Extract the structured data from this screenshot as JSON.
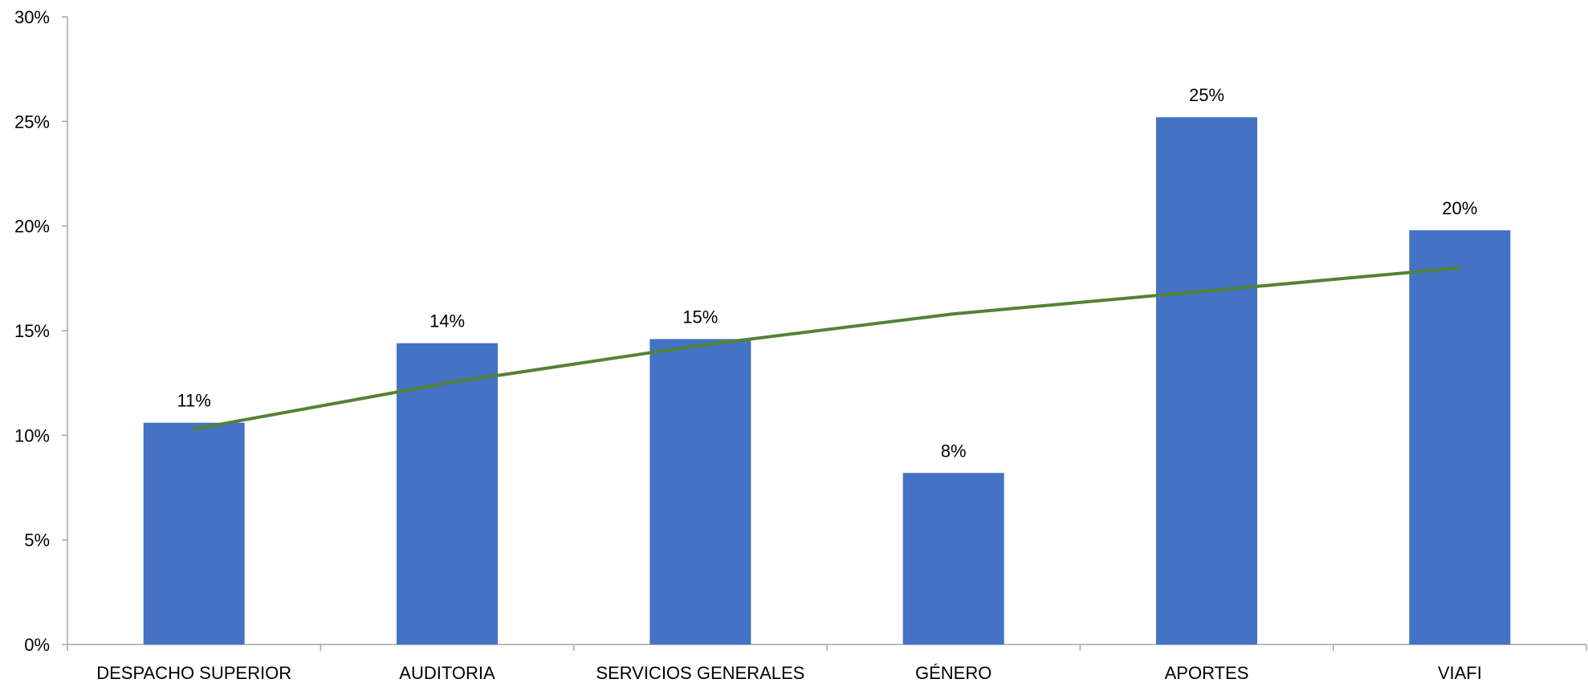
{
  "chart_data": {
    "type": "bar",
    "title": "",
    "xlabel": "",
    "ylabel": "",
    "categories": [
      "DESPACHO SUPERIOR",
      "AUDITORIA",
      "SERVICIOS GENERALES",
      "GÉNERO",
      "APORTES",
      "VIAFI"
    ],
    "values": [
      10.6,
      14.4,
      14.6,
      8.2,
      25.2,
      19.8
    ],
    "data_labels": [
      "11%",
      "14%",
      "15%",
      "8%",
      "25%",
      "20%"
    ],
    "ylim": [
      0,
      30
    ],
    "yticks": [
      0,
      5,
      10,
      15,
      20,
      25,
      30
    ],
    "ytick_labels": [
      "0%",
      "5%",
      "10%",
      "15%",
      "20%",
      "25%",
      "30%"
    ],
    "grid": false,
    "legend": "none",
    "trendline": {
      "type": "logarithmic",
      "values": [
        10.3,
        12.5,
        14.3,
        15.8,
        16.9,
        18.0
      ]
    },
    "colors": {
      "bar": "#4472C4",
      "trendline": "#548235",
      "axis": "#A6A6A6",
      "text": "#000000"
    }
  }
}
